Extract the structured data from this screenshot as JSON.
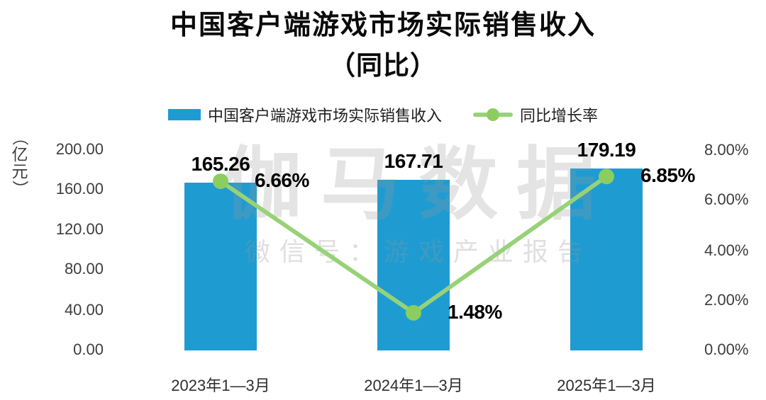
{
  "title": {
    "line1": "中国客户端游戏市场实际销售收入",
    "line2": "（同比）"
  },
  "legend": {
    "items": [
      {
        "label": "中国客户端游戏市场实际销售收入",
        "marker": "bar-swatch"
      },
      {
        "label": "同比增长率",
        "marker": "line-dot-swatch"
      }
    ]
  },
  "watermark": {
    "line1": "伽马数据",
    "line2": "微信号：游戏产业报告"
  },
  "axes": {
    "left_unit": "（亿元）",
    "left_unit_chars": [
      "（",
      "亿",
      "元",
      "）"
    ],
    "left_ticks": [
      "200.00",
      "160.00",
      "120.00",
      "80.00",
      "40.00",
      "0.00"
    ],
    "right_ticks": [
      "8.00%",
      "6.00%",
      "4.00%",
      "2.00%",
      "0.00%"
    ]
  },
  "colors": {
    "bar_blue": "#1E9CD2",
    "line_green": "#97D277",
    "dot_green": "#8CCD60",
    "label_black": "#000000"
  },
  "chart_data": {
    "type": "bar",
    "title": "中国客户端游戏市场实际销售收入（同比）",
    "categories": [
      "2023年1—3月",
      "2024年1—3月",
      "2025年1—3月"
    ],
    "series": [
      {
        "name": "中国客户端游戏市场实际销售收入",
        "type": "bar",
        "axis": "left",
        "values": [
          165.26,
          167.71,
          179.19
        ],
        "labels": [
          "165.26",
          "167.71",
          "179.19"
        ],
        "color": "#1E9CD2",
        "ylim": [
          0,
          200
        ]
      },
      {
        "name": "同比增长率",
        "type": "line",
        "axis": "right",
        "values": [
          6.66,
          1.48,
          6.85
        ],
        "labels": [
          "6.66%",
          "1.48%",
          "6.85%"
        ],
        "color": "#97D277",
        "dot_color": "#8CCD60",
        "ylim": [
          0,
          8
        ]
      }
    ],
    "left_axis_label": "（亿元）",
    "left_ylim": [
      0,
      200
    ],
    "right_ylim": [
      0,
      8
    ],
    "grid": false,
    "legend_position": "top"
  }
}
